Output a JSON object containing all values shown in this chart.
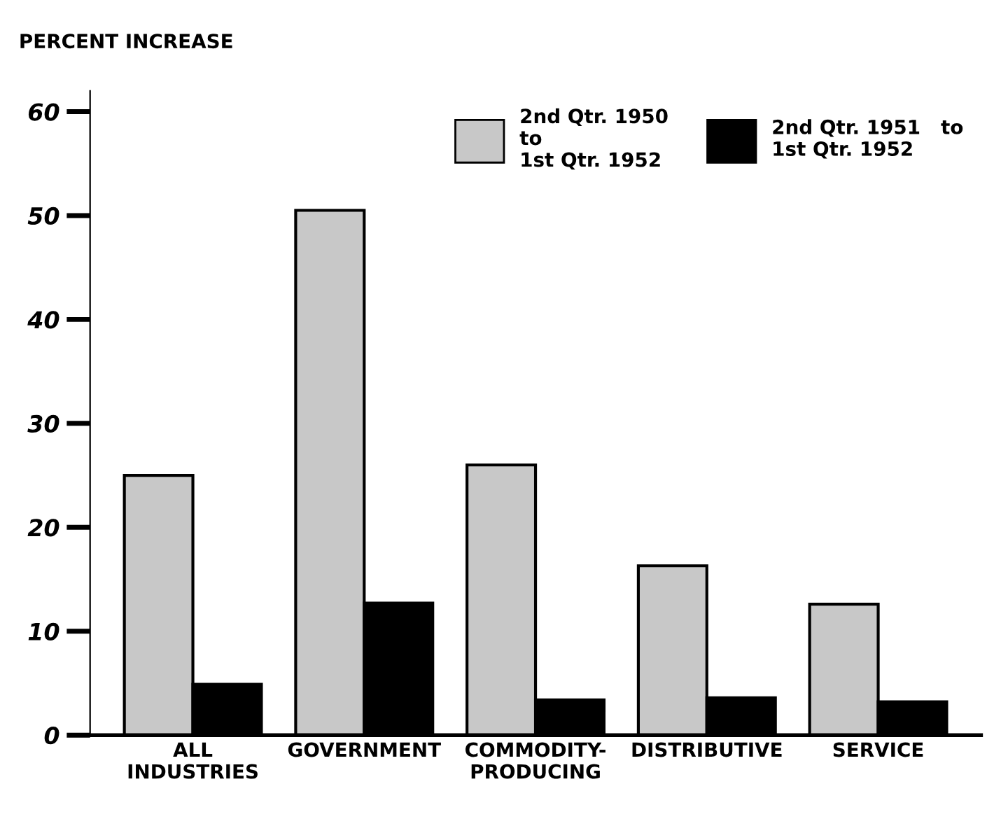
{
  "chart_data": {
    "type": "bar",
    "ylabel": "PERCENT INCREASE",
    "categories": [
      "ALL\nINDUSTRIES",
      "GOVERNMENT",
      "COMMODITY-\nPRODUCING",
      "DISTRIBUTIVE",
      "SERVICE"
    ],
    "series": [
      {
        "name": "2nd Qtr. 1950\nto\n1st Qtr. 1952",
        "color": "#c8c8c8",
        "values": [
          25,
          50.5,
          26,
          16.3,
          12.6
        ]
      },
      {
        "name": "2nd Qtr. 1951   to\n1st Qtr. 1952",
        "color": "#000000",
        "values": [
          4.9,
          12.7,
          3.4,
          3.6,
          3.2
        ]
      }
    ],
    "ylim": [
      0,
      62
    ],
    "yticks": [
      0,
      10,
      20,
      30,
      40,
      50,
      60
    ],
    "grid": false,
    "legend": "top right"
  }
}
